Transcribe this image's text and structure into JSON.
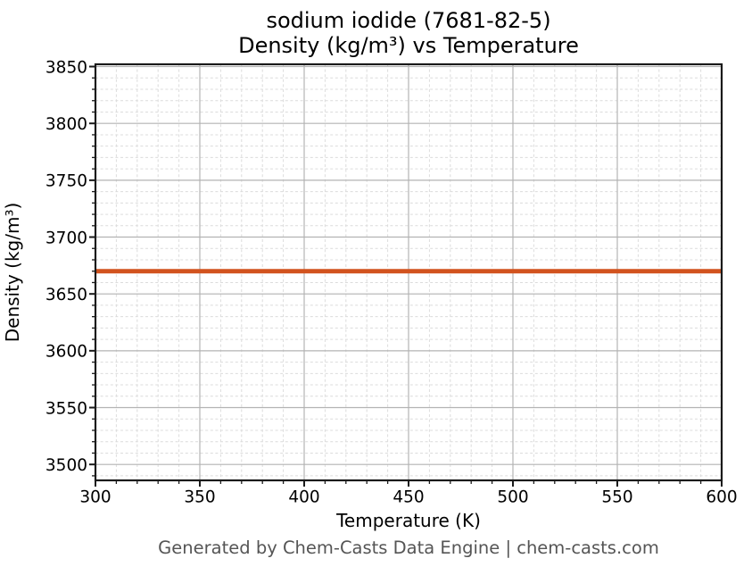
{
  "chart_data": {
    "type": "line",
    "title_lines": [
      "sodium iodide (7681-82-5)",
      "Density (kg/m³) vs Temperature"
    ],
    "xlabel": "Temperature (K)",
    "ylabel": "Density (kg/m³)",
    "xlim": [
      300,
      600
    ],
    "ylim": [
      3486,
      3852
    ],
    "x_major_ticks": [
      300,
      350,
      400,
      450,
      500,
      550,
      600
    ],
    "y_major_ticks": [
      3500,
      3550,
      3600,
      3650,
      3700,
      3750,
      3800,
      3850
    ],
    "x_minor_step": 10,
    "y_minor_step": 10,
    "grid": true,
    "legend": false,
    "series": [
      {
        "name": "density",
        "color": "#d2531e",
        "x": [
          300,
          350,
          400,
          450,
          500,
          550,
          600
        ],
        "y": [
          3670,
          3670,
          3670,
          3670,
          3670,
          3670,
          3670
        ]
      }
    ],
    "style": {
      "major_grid_color": "#b3b3b3",
      "minor_grid_color": "#dcdcdc",
      "spine_color": "#1a1a1a",
      "line_width": 5
    }
  },
  "footer": {
    "text": "Generated by Chem-Casts Data Engine | chem-casts.com"
  }
}
